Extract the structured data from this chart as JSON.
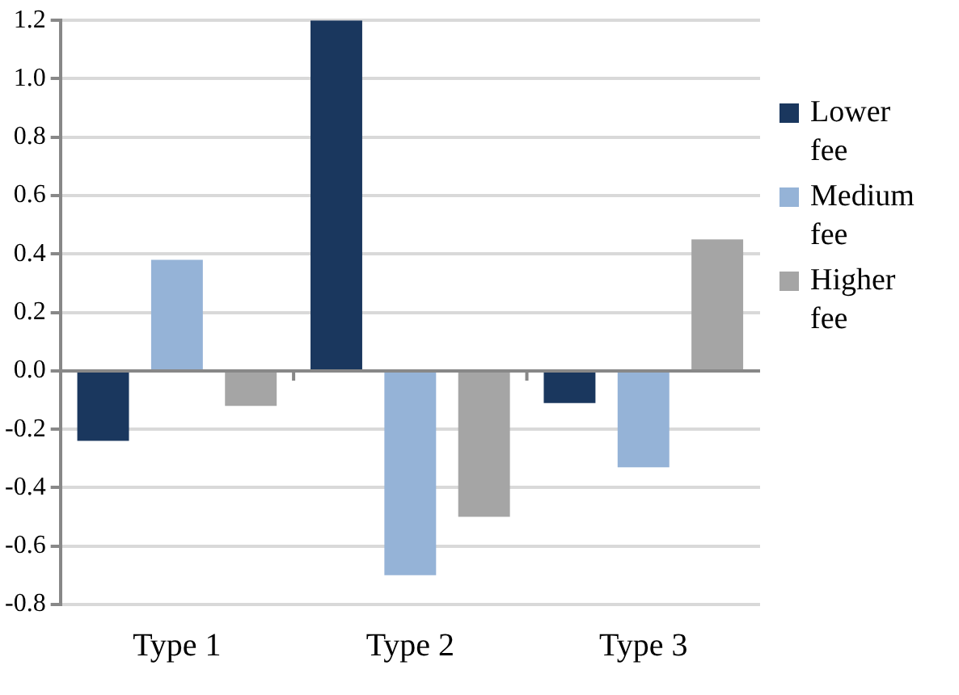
{
  "chart_data": {
    "type": "bar",
    "categories": [
      "Type 1",
      "Type 2",
      "Type 3"
    ],
    "series": [
      {
        "name": "Lower fee",
        "color": "#1a375e",
        "values": [
          -0.24,
          1.2,
          -0.11
        ]
      },
      {
        "name": "Medium fee",
        "color": "#95b3d7",
        "values": [
          0.38,
          -0.7,
          -0.33
        ]
      },
      {
        "name": "Higher fee",
        "color": "#a5a5a5",
        "values": [
          -0.12,
          -0.5,
          0.45
        ]
      }
    ],
    "ylim": [
      -0.8,
      1.2
    ],
    "yticks": [
      {
        "value": -0.8,
        "label": "-0.8"
      },
      {
        "value": -0.6,
        "label": "-0.6"
      },
      {
        "value": -0.4,
        "label": "-0.4"
      },
      {
        "value": -0.2,
        "label": "-0.2"
      },
      {
        "value": 0,
        "label": "0.0"
      },
      {
        "value": 0.2,
        "label": "0.2"
      },
      {
        "value": 0.4,
        "label": "0.4"
      },
      {
        "value": 0.6,
        "label": "0.6"
      },
      {
        "value": 0.8,
        "label": "0.8"
      },
      {
        "value": 1,
        "label": "1.0"
      },
      {
        "value": 1.2,
        "label": "1.2"
      }
    ],
    "grid": "y",
    "legend": "right"
  }
}
